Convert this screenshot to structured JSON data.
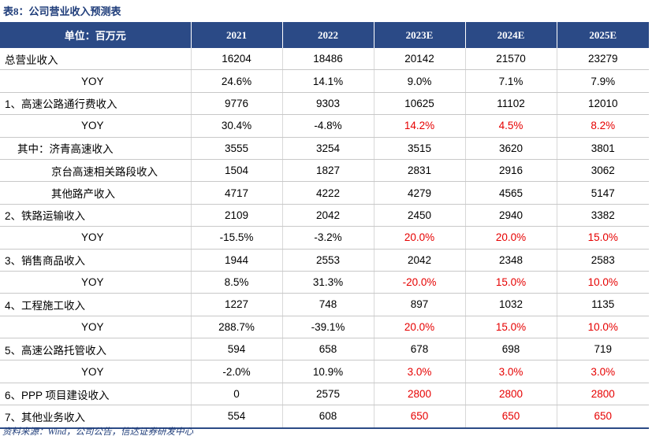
{
  "title": "表8：公司营业收入预测表",
  "header": [
    "单位：百万元",
    "2021",
    "2022",
    "2023E",
    "2024E",
    "2025E"
  ],
  "rows": [
    {
      "label": "总营业收入",
      "indent": 0,
      "values": [
        "16204",
        "18486",
        "20142",
        "21570",
        "23279"
      ],
      "red": [
        false,
        false,
        false,
        false,
        false
      ]
    },
    {
      "label": "YOY",
      "indent": 1,
      "values": [
        "24.6%",
        "14.1%",
        "9.0%",
        "7.1%",
        "7.9%"
      ],
      "red": [
        false,
        false,
        false,
        false,
        false
      ]
    },
    {
      "label": "1、高速公路通行费收入",
      "indent": 0,
      "values": [
        "9776",
        "9303",
        "10625",
        "11102",
        "12010"
      ],
      "red": [
        false,
        false,
        false,
        false,
        false
      ]
    },
    {
      "label": "YOY",
      "indent": 1,
      "values": [
        "30.4%",
        "-4.8%",
        "14.2%",
        "4.5%",
        "8.2%"
      ],
      "red": [
        false,
        false,
        true,
        true,
        true
      ]
    },
    {
      "label": "其中：济青高速收入",
      "indent": 2,
      "values": [
        "3555",
        "3254",
        "3515",
        "3620",
        "3801"
      ],
      "red": [
        false,
        false,
        false,
        false,
        false
      ]
    },
    {
      "label": "京台高速相关路段收入",
      "indent": 3,
      "values": [
        "1504",
        "1827",
        "2831",
        "2916",
        "3062"
      ],
      "red": [
        false,
        false,
        false,
        false,
        false
      ]
    },
    {
      "label": "其他路产收入",
      "indent": 3,
      "values": [
        "4717",
        "4222",
        "4279",
        "4565",
        "5147"
      ],
      "red": [
        false,
        false,
        false,
        false,
        false
      ]
    },
    {
      "label": "2、铁路运输收入",
      "indent": 0,
      "values": [
        "2109",
        "2042",
        "2450",
        "2940",
        "3382"
      ],
      "red": [
        false,
        false,
        false,
        false,
        false
      ]
    },
    {
      "label": "YOY",
      "indent": 1,
      "values": [
        "-15.5%",
        "-3.2%",
        "20.0%",
        "20.0%",
        "15.0%"
      ],
      "red": [
        false,
        false,
        true,
        true,
        true
      ]
    },
    {
      "label": "3、销售商品收入",
      "indent": 0,
      "values": [
        "1944",
        "2553",
        "2042",
        "2348",
        "2583"
      ],
      "red": [
        false,
        false,
        false,
        false,
        false
      ]
    },
    {
      "label": "YOY",
      "indent": 1,
      "values": [
        "8.5%",
        "31.3%",
        "-20.0%",
        "15.0%",
        "10.0%"
      ],
      "red": [
        false,
        false,
        true,
        true,
        true
      ]
    },
    {
      "label": "4、工程施工收入",
      "indent": 0,
      "values": [
        "1227",
        "748",
        "897",
        "1032",
        "1135"
      ],
      "red": [
        false,
        false,
        false,
        false,
        false
      ]
    },
    {
      "label": "YOY",
      "indent": 1,
      "values": [
        "288.7%",
        "-39.1%",
        "20.0%",
        "15.0%",
        "10.0%"
      ],
      "red": [
        false,
        false,
        true,
        true,
        true
      ]
    },
    {
      "label": "5、高速公路托管收入",
      "indent": 0,
      "values": [
        "594",
        "658",
        "678",
        "698",
        "719"
      ],
      "red": [
        false,
        false,
        false,
        false,
        false
      ]
    },
    {
      "label": "YOY",
      "indent": 1,
      "values": [
        "-2.0%",
        "10.9%",
        "3.0%",
        "3.0%",
        "3.0%"
      ],
      "red": [
        false,
        false,
        true,
        true,
        true
      ]
    },
    {
      "label": "6、PPP 项目建设收入",
      "indent": 0,
      "values": [
        "0",
        "2575",
        "2800",
        "2800",
        "2800"
      ],
      "red": [
        false,
        false,
        true,
        true,
        true
      ]
    },
    {
      "label": "7、其他业务收入",
      "indent": 0,
      "values": [
        "554",
        "608",
        "650",
        "650",
        "650"
      ],
      "red": [
        false,
        false,
        true,
        true,
        true
      ]
    }
  ],
  "source": "资料来源：Wind，公司公告，信达证券研发中心"
}
